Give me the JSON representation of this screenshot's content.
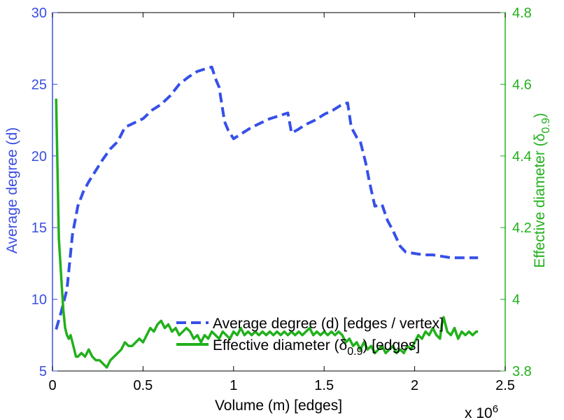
{
  "chart_data": {
    "type": "line",
    "xlabel": "Volume (m) [edges]",
    "x_multiplier": "x 10",
    "x_multiplier_exp": "6",
    "ylabel_left": "Average degree (d)",
    "ylabel_right_main": "Effective diameter (δ",
    "ylabel_right_sub": "0.9",
    "ylabel_right_close": ")",
    "xlim": [
      0,
      2.5
    ],
    "ylim_left": [
      5,
      30
    ],
    "ylim_right": [
      3.8,
      4.8
    ],
    "xticks": [
      "0",
      "0.5",
      "1",
      "1.5",
      "2",
      "2.5"
    ],
    "yticks_left": [
      "5",
      "10",
      "15",
      "20",
      "25",
      "30"
    ],
    "yticks_right": [
      "3.8",
      "4",
      "4.2",
      "4.4",
      "4.6",
      "4.8"
    ],
    "colors": {
      "degree": "#3650e8",
      "diameter": "#22b01c",
      "left_axis": "#3a4ee0",
      "right_axis": "#22b01c"
    },
    "legend": {
      "placement": "bottom-center",
      "degree_label": "Average degree (d) [edges / vertex]",
      "diameter_label_main": "Effective diameter (δ",
      "diameter_label_sub": "0.9",
      "diameter_label_close": ") [edges]"
    },
    "series": [
      {
        "name": "Average degree (d) [edges / vertex]",
        "axis": "left",
        "style": "dashed",
        "x": [
          0.02,
          0.05,
          0.08,
          0.11,
          0.14,
          0.17,
          0.2,
          0.24,
          0.28,
          0.32,
          0.36,
          0.4,
          0.45,
          0.5,
          0.55,
          0.6,
          0.65,
          0.7,
          0.75,
          0.8,
          0.85,
          0.88,
          0.9,
          0.92,
          0.95,
          0.97,
          1.0,
          1.05,
          1.1,
          1.15,
          1.2,
          1.25,
          1.3,
          1.32,
          1.35,
          1.4,
          1.45,
          1.5,
          1.55,
          1.6,
          1.63,
          1.65,
          1.68,
          1.7,
          1.73,
          1.75,
          1.78,
          1.82,
          1.85,
          1.88,
          1.92,
          1.95,
          2.0,
          2.05,
          2.1,
          2.15,
          2.2,
          2.25,
          2.3,
          2.35
        ],
        "values": [
          7.9,
          9.2,
          10.7,
          14.5,
          16.5,
          17.5,
          18.2,
          19.0,
          19.8,
          20.5,
          21.0,
          22.0,
          22.3,
          22.6,
          23.2,
          23.6,
          24.2,
          25.0,
          25.5,
          25.9,
          26.1,
          26.2,
          25.4,
          24.8,
          22.4,
          21.8,
          21.2,
          21.6,
          22.0,
          22.3,
          22.6,
          22.8,
          23.0,
          21.6,
          21.8,
          22.2,
          22.5,
          22.9,
          23.2,
          23.6,
          23.7,
          22.0,
          21.3,
          21.0,
          19.5,
          18.2,
          16.5,
          16.6,
          15.5,
          14.8,
          13.7,
          13.3,
          13.2,
          13.1,
          13.1,
          13.0,
          12.9,
          12.9,
          12.9,
          12.9
        ]
      },
      {
        "name": "Effective diameter (δ0.9) [edges]",
        "axis": "right",
        "style": "solid",
        "x": [
          0.02,
          0.035,
          0.05,
          0.06,
          0.07,
          0.08,
          0.09,
          0.1,
          0.11,
          0.12,
          0.13,
          0.14,
          0.16,
          0.18,
          0.2,
          0.22,
          0.24,
          0.26,
          0.28,
          0.3,
          0.32,
          0.34,
          0.36,
          0.38,
          0.4,
          0.42,
          0.44,
          0.46,
          0.48,
          0.5,
          0.52,
          0.54,
          0.56,
          0.58,
          0.6,
          0.62,
          0.64,
          0.66,
          0.68,
          0.7,
          0.72,
          0.74,
          0.76,
          0.78,
          0.8,
          0.82,
          0.84,
          0.86,
          0.88,
          0.9,
          0.92,
          0.94,
          0.96,
          0.98,
          1.0,
          1.02,
          1.04,
          1.06,
          1.08,
          1.1,
          1.12,
          1.14,
          1.16,
          1.18,
          1.2,
          1.22,
          1.24,
          1.26,
          1.28,
          1.3,
          1.32,
          1.34,
          1.36,
          1.38,
          1.4,
          1.42,
          1.44,
          1.46,
          1.48,
          1.5,
          1.52,
          1.54,
          1.56,
          1.58,
          1.6,
          1.62,
          1.64,
          1.66,
          1.68,
          1.7,
          1.72,
          1.74,
          1.76,
          1.78,
          1.8,
          1.82,
          1.84,
          1.86,
          1.88,
          1.9,
          1.92,
          1.94,
          1.96,
          1.98,
          2.0,
          2.02,
          2.04,
          2.06,
          2.08,
          2.1,
          2.12,
          2.14,
          2.15,
          2.16,
          2.18,
          2.2,
          2.22,
          2.24,
          2.26,
          2.28,
          2.3,
          2.32,
          2.34,
          2.35
        ],
        "values": [
          4.56,
          4.17,
          4.05,
          3.97,
          3.92,
          3.9,
          3.89,
          3.9,
          3.88,
          3.86,
          3.84,
          3.84,
          3.85,
          3.84,
          3.86,
          3.84,
          3.83,
          3.83,
          3.82,
          3.81,
          3.83,
          3.84,
          3.85,
          3.86,
          3.88,
          3.87,
          3.87,
          3.88,
          3.89,
          3.88,
          3.9,
          3.92,
          3.91,
          3.93,
          3.94,
          3.92,
          3.93,
          3.91,
          3.92,
          3.9,
          3.91,
          3.92,
          3.91,
          3.89,
          3.9,
          3.88,
          3.9,
          3.89,
          3.91,
          3.9,
          3.89,
          3.91,
          3.9,
          3.89,
          3.91,
          3.9,
          3.92,
          3.9,
          3.91,
          3.9,
          3.91,
          3.9,
          3.91,
          3.9,
          3.91,
          3.9,
          3.91,
          3.9,
          3.91,
          3.9,
          3.91,
          3.9,
          3.91,
          3.9,
          3.91,
          3.92,
          3.9,
          3.91,
          3.9,
          3.91,
          3.9,
          3.91,
          3.9,
          3.91,
          3.9,
          3.88,
          3.89,
          3.87,
          3.88,
          3.86,
          3.88,
          3.86,
          3.87,
          3.85,
          3.86,
          3.87,
          3.85,
          3.86,
          3.87,
          3.85,
          3.86,
          3.85,
          3.87,
          3.86,
          3.88,
          3.9,
          3.89,
          3.91,
          3.9,
          3.92,
          3.9,
          3.89,
          3.93,
          3.95,
          3.91,
          3.9,
          3.92,
          3.89,
          3.91,
          3.9,
          3.91,
          3.9,
          3.91,
          3.91
        ]
      }
    ]
  }
}
